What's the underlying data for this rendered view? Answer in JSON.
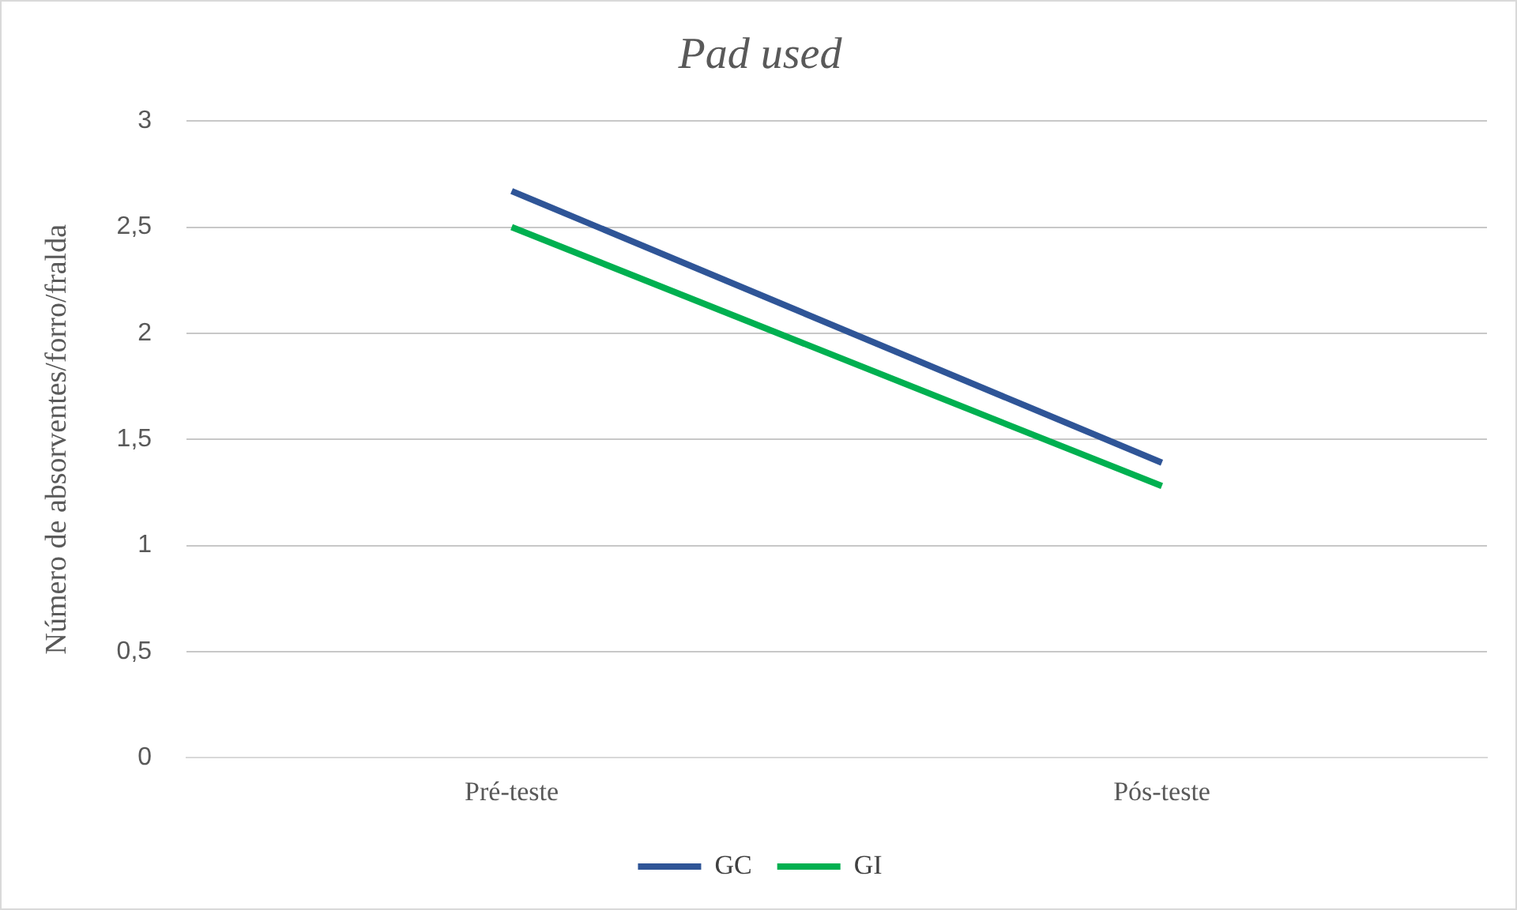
{
  "chart_data": {
    "type": "line",
    "title": "Pad used",
    "ylabel": "Número de absorventes/forro/fralda",
    "categories": [
      "Pré-teste",
      "Pós-teste"
    ],
    "series": [
      {
        "name": "GC",
        "color": "#2f5597",
        "values": [
          2.67,
          1.39
        ]
      },
      {
        "name": "GI",
        "color": "#00b050",
        "values": [
          2.5,
          1.28
        ]
      }
    ],
    "ylim": [
      0,
      3
    ],
    "yticks": [
      {
        "value": 0,
        "label": "0"
      },
      {
        "value": 0.5,
        "label": "0,5"
      },
      {
        "value": 1,
        "label": "1"
      },
      {
        "value": 1.5,
        "label": "1,5"
      },
      {
        "value": 2,
        "label": "2"
      },
      {
        "value": 2.5,
        "label": "2,5"
      },
      {
        "value": 3,
        "label": "3"
      }
    ],
    "grid": "y",
    "legend": "bottom",
    "marker": "none",
    "line_style": "solid"
  }
}
